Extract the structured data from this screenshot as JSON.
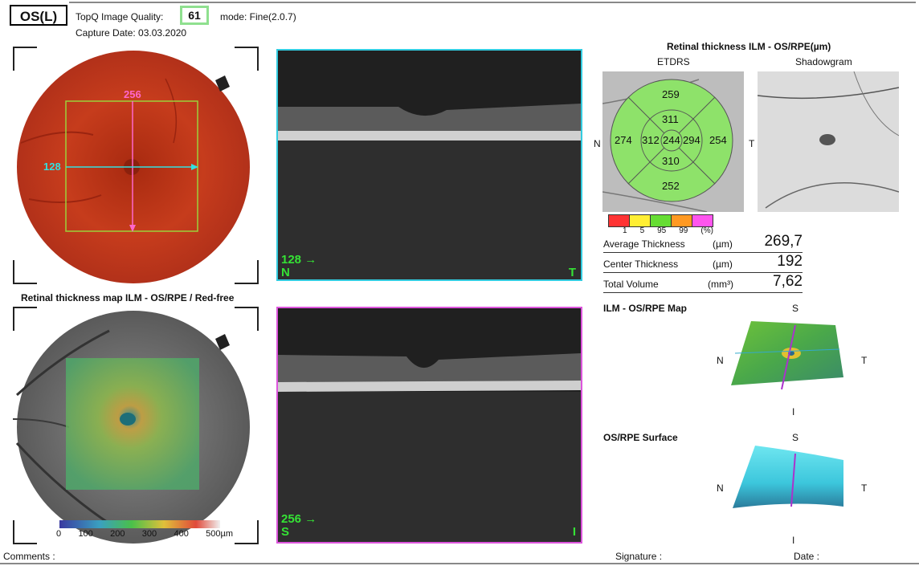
{
  "header": {
    "eye": "OS(L)",
    "quality_label": "TopQ Image Quality:",
    "quality_value": "61",
    "mode": "mode: Fine(2.0.7)",
    "capture_date": "Capture Date: 03.03.2020"
  },
  "fundus": {
    "h_marker": "256",
    "v_marker": "128"
  },
  "bscan1": {
    "marker": "128",
    "left": "N",
    "right": "T"
  },
  "bscan2": {
    "marker": "256",
    "left": "S",
    "right": "I"
  },
  "map_panel": {
    "title": "Retinal thickness map ILM - OS/RPE / Red-free",
    "scale_labels": [
      "0",
      "100",
      "200",
      "300",
      "400",
      "500µm"
    ]
  },
  "thickness": {
    "title": "Retinal thickness ILM - OS/RPE(µm)",
    "etdrs_label": "ETDRS",
    "shadow_label": "Shadowgram",
    "n_label": "N",
    "t_label": "T",
    "etdrs_values": {
      "outer_sup": "259",
      "inner_sup": "311",
      "outer_nas": "274",
      "inner_nas": "312",
      "center": "244",
      "inner_tem": "294",
      "outer_tem": "254",
      "inner_inf": "310",
      "outer_inf": "252"
    },
    "legend_labels": [
      "1",
      "5",
      "95",
      "99",
      "(%)"
    ],
    "legend_colors": [
      "#ff3333",
      "#ffee33",
      "#66dd33",
      "#ff9922",
      "#ff55ee"
    ]
  },
  "measurements": [
    {
      "label": "Average Thickness",
      "unit": "(µm)",
      "value": "269,7"
    },
    {
      "label": "Center Thickness",
      "unit": "(µm)",
      "value": "192"
    },
    {
      "label": "Total Volume",
      "unit": "(mm³)",
      "value": "7,62"
    }
  ],
  "map3d": {
    "title": "ILM - OS/RPE Map",
    "s": "S",
    "n": "N",
    "t": "T",
    "i": "I"
  },
  "surface3d": {
    "title": "OS/RPE Surface",
    "s": "S",
    "n": "N",
    "t": "T",
    "i": "I"
  },
  "footer": {
    "comments": "Comments :",
    "signature": "Signature :",
    "date": "Date :"
  }
}
